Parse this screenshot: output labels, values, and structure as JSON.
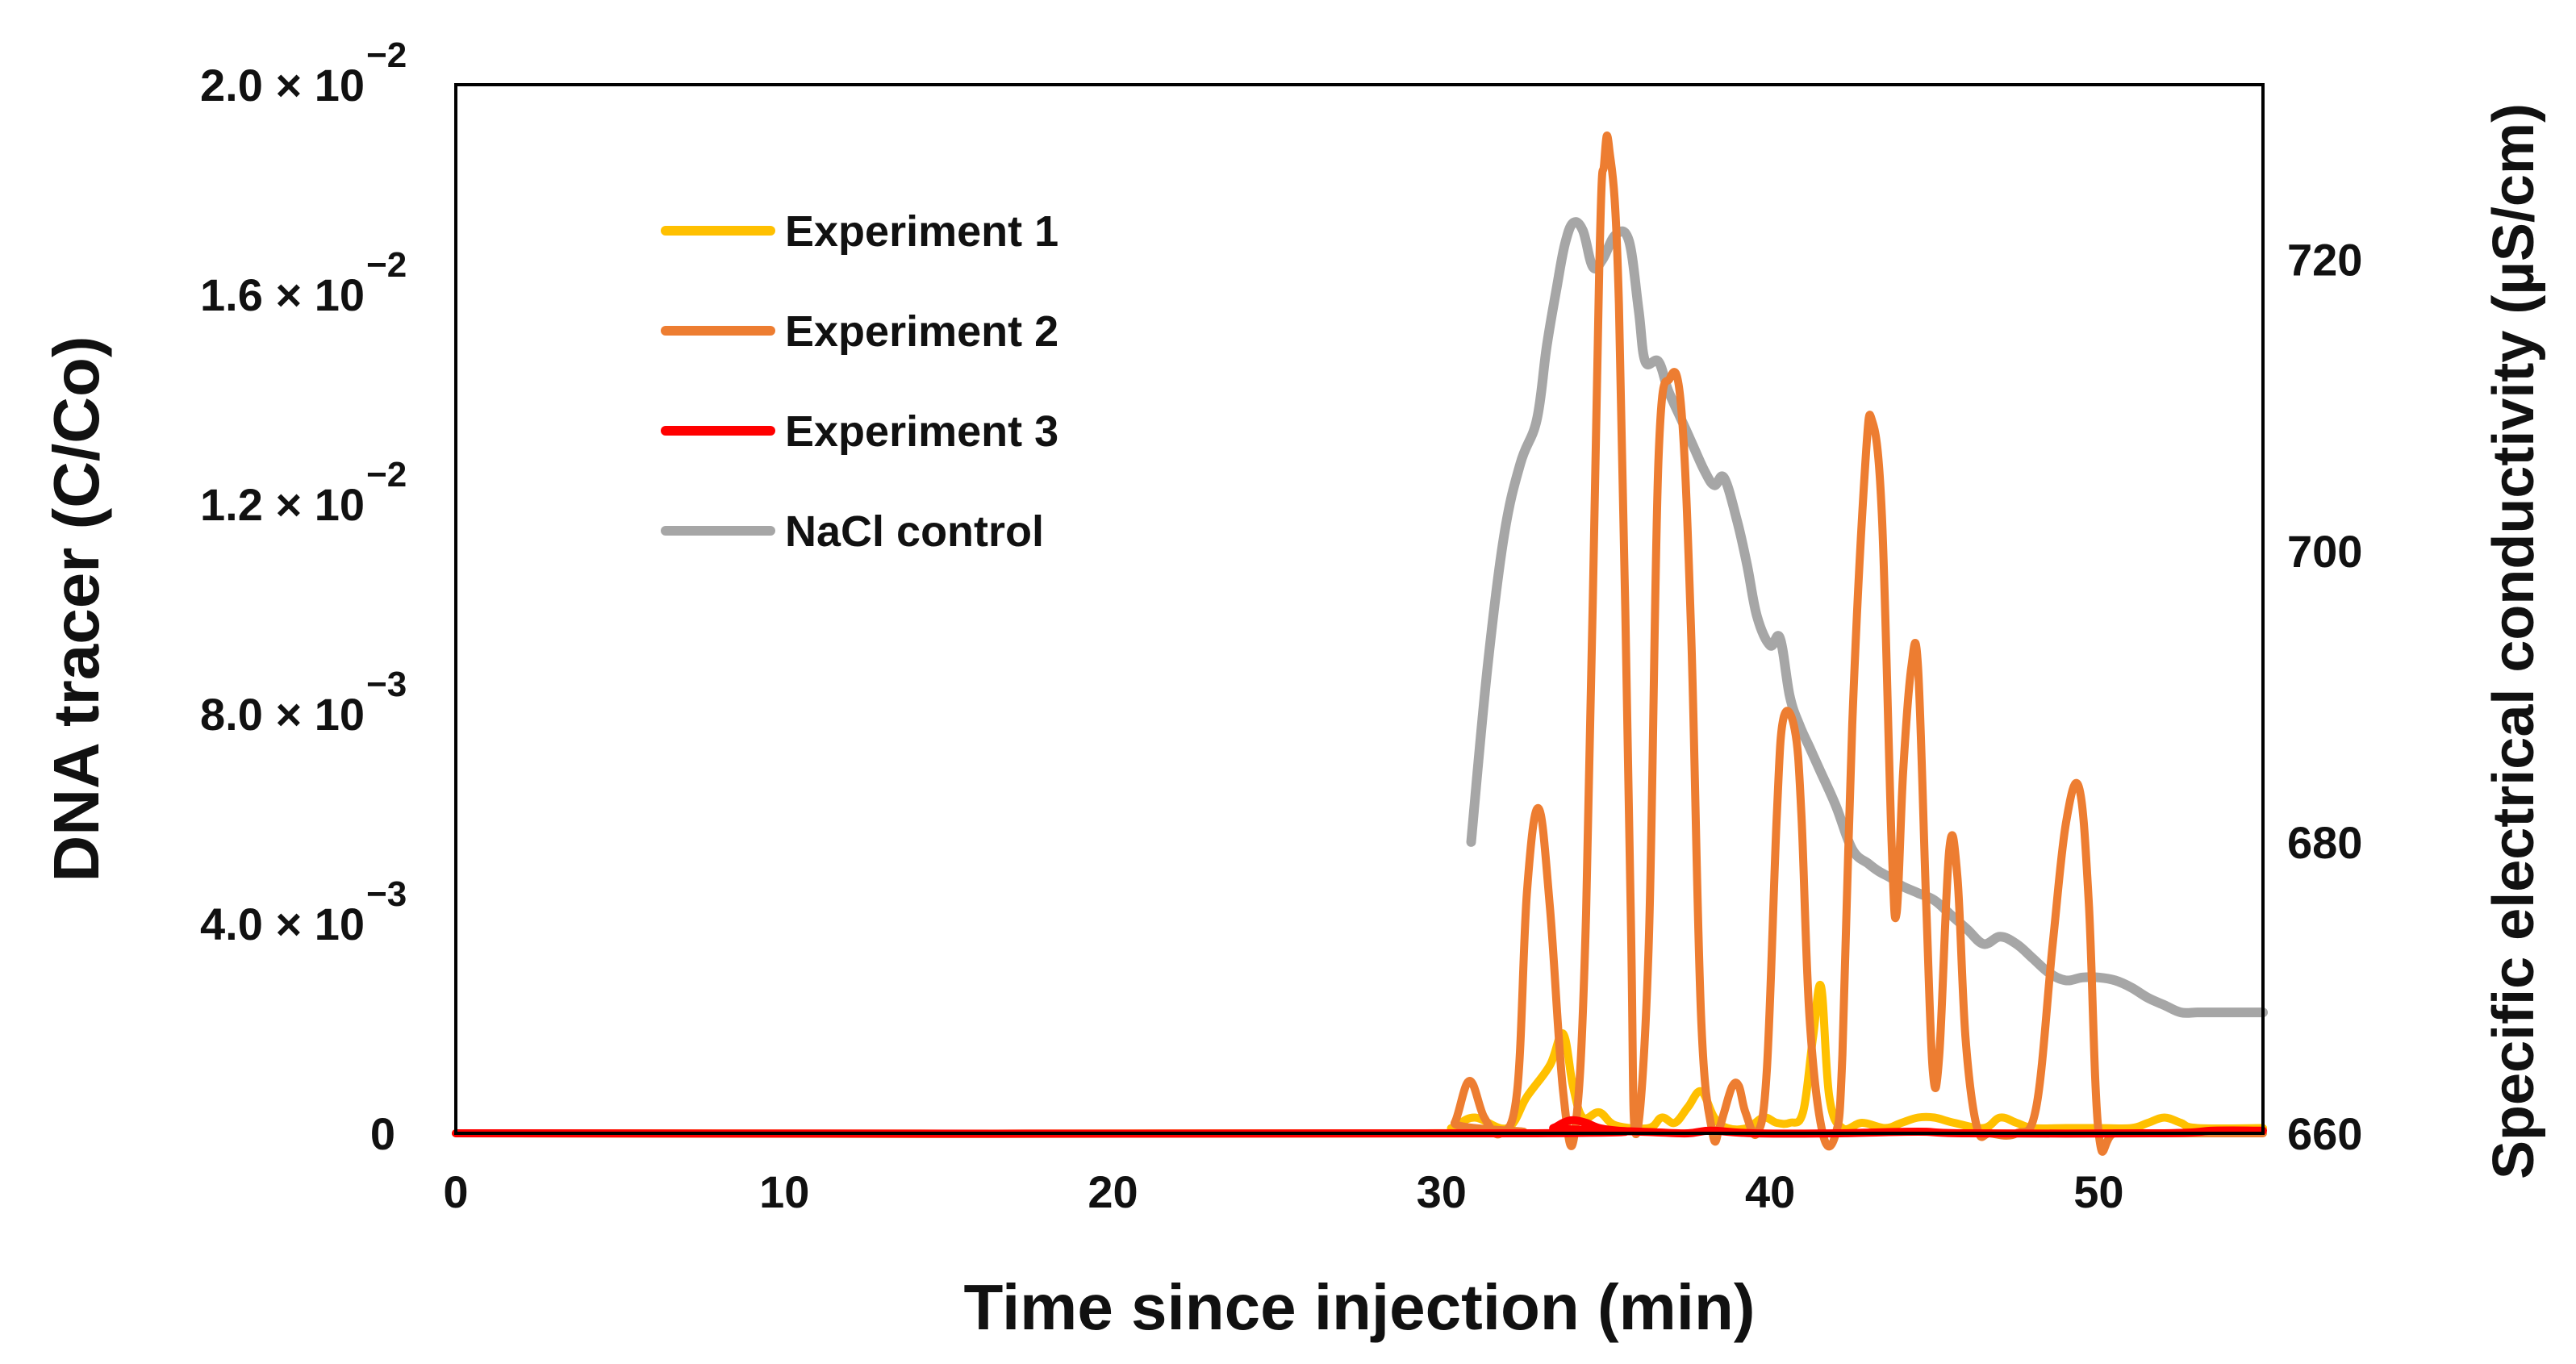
{
  "chart_data": {
    "type": "line",
    "title": "",
    "xlabel": "Time since injection (min)",
    "ylabel": "DNA tracer (C/Co)",
    "y2label": "Specific electrical conductivity (µS/cm)",
    "xlim": [
      0,
      55
    ],
    "ylim": [
      0,
      0.02
    ],
    "y2lim": [
      660,
      732
    ],
    "x_ticks": [
      "0",
      "10",
      "20",
      "30",
      "40",
      "50"
    ],
    "y_ticks": [
      {
        "mantissa": "0",
        "exponent": ""
      },
      {
        "mantissa": "4.0 × 10",
        "exponent": "−3"
      },
      {
        "mantissa": "8.0 × 10",
        "exponent": "−3"
      },
      {
        "mantissa": "1.2 × 10",
        "exponent": "−2"
      },
      {
        "mantissa": "1.6 × 10",
        "exponent": "−2"
      },
      {
        "mantissa": "2.0 × 10",
        "exponent": "−2"
      }
    ],
    "y2_ticks": [
      "660",
      "680",
      "700",
      "720"
    ],
    "legend_position": "top-left",
    "series": [
      {
        "name": "Experiment 1",
        "color": "#FFC000",
        "axis": "left",
        "x": [
          0,
          29.5,
          30.3,
          31,
          32,
          32.6,
          33.3,
          33.7,
          34,
          34.3,
          34.8,
          35.3,
          36.3,
          36.7,
          37.1,
          37.5,
          37.9,
          38.3,
          38.7,
          39.3,
          39.8,
          40.2,
          40.6,
          41.0,
          41.3,
          41.55,
          41.8,
          42.2,
          42.8,
          43.5,
          44,
          44.5,
          45,
          45.6,
          46.5,
          47,
          47.5,
          48,
          49,
          50,
          51,
          51.5,
          52,
          52.5,
          53,
          55
        ],
        "y": [
          0,
          0,
          0.0001,
          0.0003,
          0.0001,
          0.0007,
          0.0013,
          0.0019,
          0.0009,
          0.0003,
          0.0004,
          0.00015,
          0.0001,
          0.0003,
          0.0002,
          0.0005,
          0.0008,
          0.0003,
          0.0001,
          0.0001,
          0.0003,
          0.0002,
          0.0002,
          0.0004,
          0.0018,
          0.0028,
          0.0007,
          0.0001,
          0.0002,
          0.0001,
          0.0002,
          0.0003,
          0.0003,
          0.0002,
          0.0001,
          0.0003,
          0.0002,
          0.0001,
          0.0001,
          0.0001,
          0.0001,
          0.0002,
          0.0003,
          0.0002,
          0.0001,
          0.0001
        ]
      },
      {
        "name": "Experiment 2",
        "color": "#ED7D31",
        "axis": "left",
        "x": [
          0,
          30,
          30.4,
          30.85,
          31.3,
          31.8,
          32.3,
          32.6,
          32.95,
          33.3,
          33.7,
          34.05,
          34.4,
          34.8,
          34.95,
          35.1,
          35.4,
          35.75,
          35.9,
          36.3,
          36.6,
          36.95,
          37.3,
          37.6,
          37.9,
          38.25,
          38.45,
          38.6,
          38.85,
          39.05,
          39.25,
          39.6,
          39.9,
          40.2,
          40.4,
          40.75,
          40.95,
          41.2,
          41.6,
          42,
          42.2,
          42.5,
          42.9,
          43.1,
          43.4,
          43.7,
          43.85,
          44.05,
          44.3,
          44.5,
          44.75,
          44.95,
          45.15,
          45.45,
          45.7,
          45.95,
          46.3,
          46.7,
          47.5,
          48.1,
          48.6,
          49.0,
          49.4,
          49.7,
          50,
          50.5,
          52,
          53,
          55
        ],
        "y": [
          0,
          0,
          0.0002,
          0.001,
          0.0003,
          0,
          0.0008,
          0.0046,
          0.0062,
          0.0043,
          0.0008,
          0,
          0.0042,
          0.0165,
          0.0185,
          0.0188,
          0.0158,
          0.0045,
          0,
          0.0035,
          0.0128,
          0.0144,
          0.0138,
          0.0095,
          0.0022,
          0,
          0.0001,
          0.0004,
          0.0009,
          0.0009,
          0.0004,
          0,
          0.0012,
          0.006,
          0.0079,
          0.0077,
          0.0061,
          0.0022,
          0,
          0,
          0.0015,
          0.0078,
          0.0128,
          0.0136,
          0.0118,
          0.0055,
          0.0042,
          0.0069,
          0.0089,
          0.0089,
          0.0044,
          0.0012,
          0.0015,
          0.0054,
          0.0049,
          0.0018,
          0.0001,
          0,
          0,
          0.0005,
          0.0036,
          0.0059,
          0.0066,
          0.0044,
          0,
          0,
          0,
          0,
          0
        ]
      },
      {
        "name": "Experiment 3",
        "color": "#FF0000",
        "axis": "left",
        "x": [
          0,
          32.8,
          33.4,
          33.7,
          34.0,
          34.4,
          34.8,
          35.4,
          36.5,
          37.5,
          38.2,
          39.5,
          42,
          44.5,
          46,
          52,
          53.5,
          55
        ],
        "y": [
          0,
          0,
          0.0001,
          0.0002,
          0.00025,
          0.0002,
          0.0001,
          5e-05,
          2e-05,
          0,
          5e-05,
          0,
          0,
          3e-05,
          0,
          0,
          5e-05,
          5e-05
        ]
      },
      {
        "name": "NaCl control",
        "color": "#A6A6A6",
        "axis": "right",
        "x": [
          30.9,
          31.4,
          31.9,
          32.4,
          32.9,
          33.2,
          33.5,
          33.75,
          34.0,
          34.3,
          34.6,
          34.9,
          35.3,
          35.7,
          36.0,
          36.2,
          36.6,
          36.9,
          37.3,
          37.6,
          38.0,
          38.3,
          38.6,
          39.0,
          39.3,
          39.6,
          40.0,
          40.3,
          40.6,
          40.9,
          41.2,
          41.5,
          42.0,
          42.5,
          43.0,
          43.3,
          43.7,
          44.0,
          44.5,
          45.0,
          45.5,
          46.0,
          46.5,
          47.0,
          47.5,
          48.0,
          48.5,
          49.0,
          49.5,
          50.0,
          50.5,
          51.0,
          51.5,
          52.0,
          52.5,
          53.0,
          53.5,
          54.0,
          54.5,
          55.0
        ],
        "y": [
          680,
          692,
          701,
          706,
          709,
          714,
          718,
          721,
          722.5,
          722,
          719.5,
          720,
          721.7,
          721.3,
          716.5,
          713,
          713,
          711,
          709,
          707.5,
          705.5,
          704.5,
          705,
          702,
          699,
          695.5,
          693.5,
          694,
          690,
          688,
          686.5,
          685,
          682.5,
          679.5,
          678.5,
          678,
          677.5,
          677,
          676.5,
          676,
          675,
          674,
          673,
          673.5,
          673,
          672,
          671,
          670.5,
          670.7,
          670.7,
          670.5,
          670,
          669.3,
          668.8,
          668.3,
          668.3,
          668.3,
          668.3,
          668.3,
          668.3
        ]
      }
    ]
  }
}
